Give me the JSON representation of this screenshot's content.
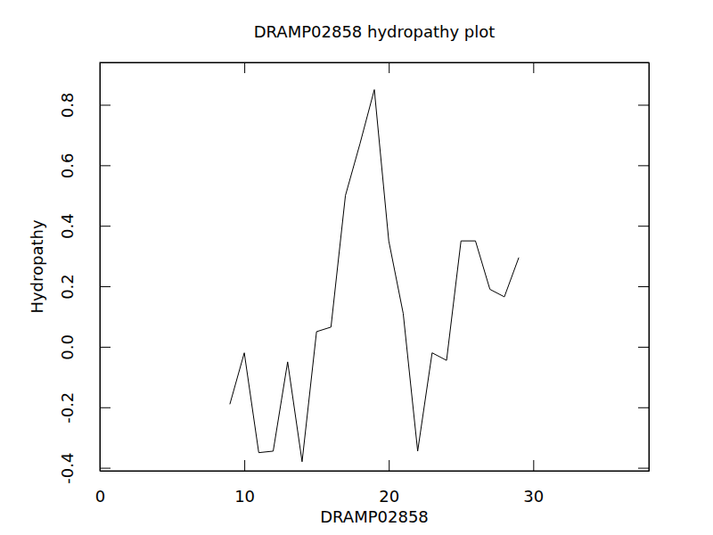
{
  "chart_data": {
    "type": "line",
    "title": "DRAMP02858 hydropathy plot",
    "x_label": "DRAMP02858",
    "y_label": "Hydropathy",
    "x": [
      9,
      10,
      11,
      12,
      13,
      14,
      15,
      16,
      17,
      18,
      19,
      20,
      21,
      22,
      23,
      24,
      25,
      26,
      27,
      28,
      29
    ],
    "values": [
      -0.19,
      -0.02,
      -0.35,
      -0.345,
      -0.05,
      -0.38,
      0.05,
      0.065,
      0.5,
      0.67,
      0.85,
      0.35,
      0.11,
      -0.345,
      -0.02,
      -0.045,
      0.35,
      0.35,
      0.19,
      0.165,
      0.295
    ],
    "color": "#000000",
    "xlim": [
      0,
      38
    ],
    "xticks": [
      0,
      10,
      20,
      30
    ],
    "ylim": [
      -0.41,
      0.94
    ],
    "yticks": [
      -0.4,
      -0.2,
      {
        "value": 0,
        "label": "0.0"
      },
      0.2,
      0.4,
      0.6,
      0.8
    ],
    "grid": false
  }
}
